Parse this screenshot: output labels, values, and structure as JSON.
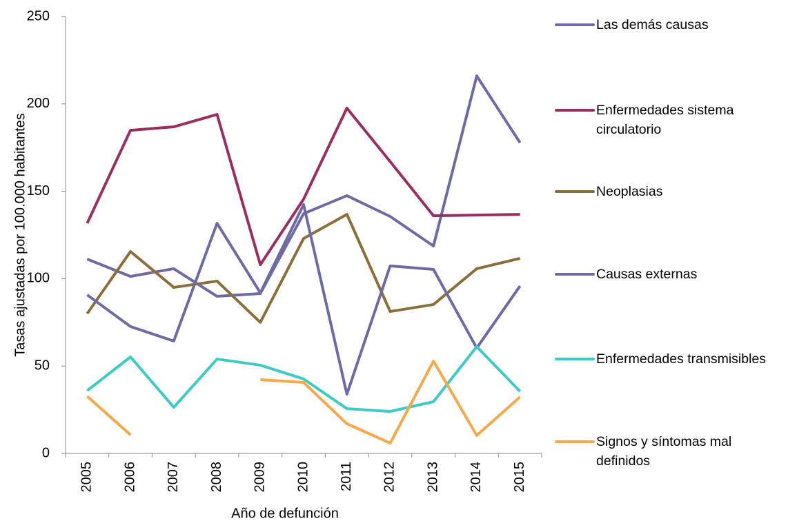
{
  "chart_data": {
    "type": "line",
    "x_label": "Año de defunción",
    "y_label": "Tasas ajustadas por 100.000 habitantes",
    "categories": [
      "2005",
      "2006",
      "2007",
      "2008",
      "2009",
      "2010",
      "2011",
      "2012",
      "2013",
      "2014",
      "2015"
    ],
    "series": [
      {
        "name": "Las demás causas",
        "color": "#6d6aa6",
        "values": [
          111.2,
          101.3,
          105.7,
          89.9,
          91.5,
          137.2,
          147.5,
          135.6,
          118.7,
          216,
          177.8
        ]
      },
      {
        "name": "Enfermedades sistema circulatorio",
        "color": "#9a2e60",
        "values": [
          131.7,
          184.9,
          186.9,
          194,
          108,
          145.5,
          197.6,
          167,
          136,
          136.4,
          136.8
        ]
      },
      {
        "name": "Neoplasias",
        "color": "#8c6e3a",
        "values": [
          80,
          115.5,
          95,
          98.6,
          75,
          123,
          136.8,
          81.2,
          85.2,
          105.7,
          111.6
        ]
      },
      {
        "name": "Causas externas",
        "color": "#6d6aa6",
        "values": [
          90.7,
          72.6,
          64.3,
          131.7,
          91.9,
          142.4,
          33.9,
          107.3,
          105.3,
          60.3,
          95.8
        ]
      },
      {
        "name": "Enfermedades transmisibles",
        "color": "#3ecac8",
        "values": [
          35.9,
          55.2,
          26.4,
          54,
          50.5,
          42.6,
          25.6,
          24,
          29.6,
          61.1,
          35.5
        ]
      },
      {
        "name": "Signos y síntomas mal definidos",
        "color": "#f7a84a",
        "values": [
          32.7,
          10.6,
          null,
          null,
          42.2,
          40.6,
          17,
          5.9,
          52.8,
          10.3,
          32.3
        ]
      }
    ],
    "ylim": [
      0,
      250
    ],
    "yticks": [
      0,
      50,
      100,
      150,
      200,
      250
    ],
    "grid": false,
    "legend": "right"
  }
}
